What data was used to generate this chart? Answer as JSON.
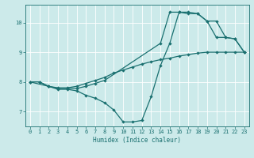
{
  "xlabel": "Humidex (Indice chaleur)",
  "bg_color": "#cceaea",
  "grid_color": "#ffffff",
  "line_color": "#1a7070",
  "xlim": [
    -0.5,
    23.5
  ],
  "ylim": [
    6.5,
    10.6
  ],
  "yticks": [
    7,
    8,
    9,
    10
  ],
  "xticks": [
    0,
    1,
    2,
    3,
    4,
    5,
    6,
    7,
    8,
    9,
    10,
    11,
    12,
    13,
    14,
    15,
    16,
    17,
    18,
    19,
    20,
    21,
    22,
    23
  ],
  "line1_x": [
    0,
    1,
    2,
    3,
    4,
    5,
    6,
    7,
    8,
    9,
    10,
    11,
    12,
    13,
    14,
    15,
    16,
    17,
    18,
    19,
    20,
    21,
    22,
    23
  ],
  "line1_y": [
    8.0,
    8.0,
    7.85,
    7.75,
    7.75,
    7.7,
    7.55,
    7.45,
    7.3,
    7.05,
    6.65,
    6.65,
    6.7,
    7.5,
    8.55,
    9.3,
    10.35,
    10.35,
    10.3,
    10.05,
    9.5,
    9.5,
    9.45,
    9.0
  ],
  "line2_x": [
    0,
    1,
    2,
    3,
    4,
    5,
    6,
    7,
    8,
    9,
    10,
    11,
    12,
    13,
    14,
    15,
    16,
    17,
    18,
    19,
    20,
    21,
    22,
    23
  ],
  "line2_y": [
    8.0,
    8.0,
    7.85,
    7.8,
    7.8,
    7.85,
    7.95,
    8.05,
    8.15,
    8.3,
    8.4,
    8.5,
    8.6,
    8.68,
    8.75,
    8.8,
    8.87,
    8.92,
    8.97,
    9.0,
    9.0,
    9.0,
    9.0,
    9.0
  ],
  "line3_x": [
    0,
    2,
    3,
    4,
    5,
    6,
    7,
    8,
    14,
    15,
    16,
    17,
    18,
    19,
    20,
    21,
    22,
    23
  ],
  "line3_y": [
    8.0,
    7.85,
    7.78,
    7.78,
    7.78,
    7.85,
    7.95,
    8.05,
    9.3,
    10.35,
    10.35,
    10.3,
    10.3,
    10.05,
    10.05,
    9.5,
    9.45,
    9.0
  ]
}
